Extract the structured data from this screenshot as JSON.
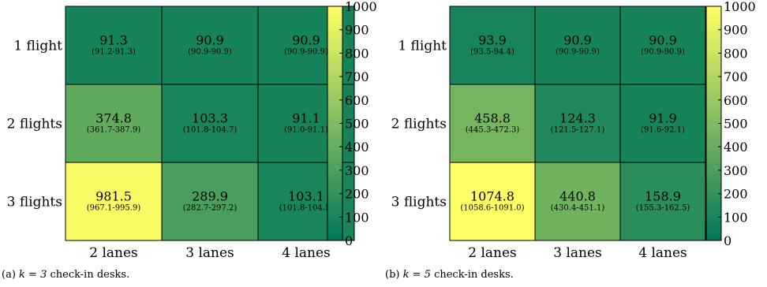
{
  "chart_data": [
    {
      "type": "heatmap",
      "caption": {
        "label": "(a)",
        "math": "k = 3",
        "text": "check-in desks."
      },
      "rows": [
        "1 flight",
        "2 flights",
        "3 flights"
      ],
      "cols": [
        "2 lanes",
        "3 lanes",
        "4 lanes"
      ],
      "values": [
        [
          91.3,
          90.9,
          90.9
        ],
        [
          374.8,
          103.3,
          91.1
        ],
        [
          981.5,
          289.9,
          103.1
        ]
      ],
      "value_labels": [
        [
          "91.3",
          "90.9",
          "90.9"
        ],
        [
          "374.8",
          "103.3",
          "91.1"
        ],
        [
          "981.5",
          "289.9",
          "103.1"
        ]
      ],
      "interval_labels": [
        [
          "(91.2-91.3)",
          "(90.9-90.9)",
          "(90.9-90.9)"
        ],
        [
          "(361.7-387.9)",
          "(101.8-104.7)",
          "(91.0-91.1)"
        ],
        [
          "(967.1-995.9)",
          "(282.7-297.2)",
          "(101.8-104.5)"
        ]
      ],
      "colorbar": {
        "range": [
          0,
          1000
        ],
        "ticks": [
          "0",
          "100",
          "200",
          "300",
          "400",
          "500",
          "600",
          "700",
          "800",
          "900",
          "1000"
        ],
        "colors": [
          "#00775a",
          "#ffff66"
        ]
      }
    },
    {
      "type": "heatmap",
      "caption": {
        "label": "(b)",
        "math": "k = 5",
        "text": "check-in desks."
      },
      "rows": [
        "1 flight",
        "2 flights",
        "3 flights"
      ],
      "cols": [
        "2 lanes",
        "3 lanes",
        "4 lanes"
      ],
      "values": [
        [
          93.9,
          90.9,
          90.9
        ],
        [
          458.8,
          124.3,
          91.9
        ],
        [
          1074.8,
          440.8,
          158.9
        ]
      ],
      "value_labels": [
        [
          "93.9",
          "90.9",
          "90.9"
        ],
        [
          "458.8",
          "124.3",
          "91.9"
        ],
        [
          "1074.8",
          "440.8",
          "158.9"
        ]
      ],
      "interval_labels": [
        [
          "(93.5-94.4)",
          "(90.9-90.9)",
          "(90.9-90.9)"
        ],
        [
          "(445.3-472.3)",
          "(121.5-127.1)",
          "(91.6-92.1)"
        ],
        [
          "(1058.6-1091.0)",
          "(430.4-451.1)",
          "(155.3-162.5)"
        ]
      ],
      "colorbar": {
        "range": [
          0,
          1000
        ],
        "ticks": [
          "0",
          "100",
          "200",
          "300",
          "400",
          "500",
          "600",
          "700",
          "800",
          "900",
          "1000"
        ],
        "colors": [
          "#00775a",
          "#ffff66"
        ]
      }
    }
  ]
}
